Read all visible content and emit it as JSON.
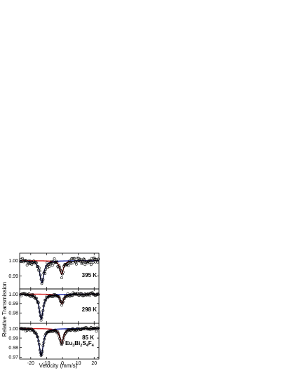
{
  "chart_data": {
    "type": "scatter",
    "title": "",
    "compound": {
      "main": "Eu",
      "sub1": "3",
      "b": "Bi",
      "sub2": "2",
      "c": "S",
      "sub3": "4",
      "d": "F",
      "sub4": "4"
    },
    "xlabel": "Velocity (mm/s)",
    "ylabel": "Relative Transmission",
    "xlim": [
      -27,
      23
    ],
    "x_ticks": [
      -20,
      -10,
      0,
      10,
      20
    ],
    "x_tick_labels": [
      "-20",
      "-10",
      "0",
      "10",
      "20"
    ],
    "grid": false,
    "colors": {
      "data": "#000000",
      "total_fit": "#000000",
      "component_blue": "#1f2aa8",
      "component_red": "#d42020"
    },
    "panels": [
      {
        "temperature": "395 K",
        "y_ticks": [
          1.0,
          0.99
        ],
        "y_tick_labels": [
          "1.00",
          "0.99"
        ],
        "ylim": [
          0.9825,
          1.004
        ],
        "lines": [
          {
            "component": "blue",
            "center": -13.0,
            "depth": 0.0145,
            "width": 3.0
          },
          {
            "component": "red",
            "center": -0.5,
            "depth": 0.009,
            "width": 2.6
          }
        ],
        "noise": 0.0012
      },
      {
        "temperature": "298 K",
        "y_ticks": [
          1.0,
          0.99,
          0.98
        ],
        "y_tick_labels": [
          "1.00",
          "0.99",
          "0.98"
        ],
        "ylim": [
          0.9705,
          1.004
        ],
        "lines": [
          {
            "component": "blue",
            "center": -13.4,
            "depth": 0.0265,
            "width": 3.0
          },
          {
            "component": "red",
            "center": -0.4,
            "depth": 0.0105,
            "width": 2.6
          }
        ],
        "noise": 0.0009
      },
      {
        "temperature": "85 K",
        "y_ticks": [
          1.0,
          0.99,
          0.98,
          0.97
        ],
        "y_tick_labels": [
          "1.00",
          "0.99",
          "0.98",
          "0.97"
        ],
        "ylim": [
          0.9695,
          1.004
        ],
        "lines": [
          {
            "component": "blue",
            "center": -13.4,
            "depth": 0.0285,
            "width": 3.1
          },
          {
            "component": "red",
            "center": -0.5,
            "depth": 0.0165,
            "width": 2.7
          }
        ],
        "noise": 0.0008
      }
    ]
  }
}
